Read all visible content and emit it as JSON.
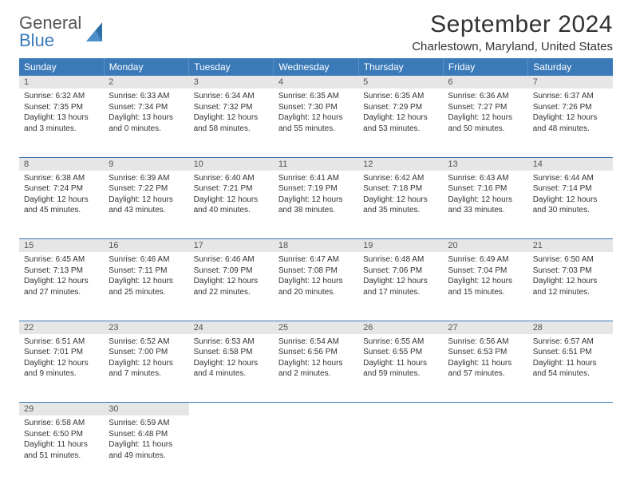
{
  "brand": {
    "name1": "General",
    "name2": "Blue"
  },
  "title": "September 2024",
  "location": "Charlestown, Maryland, United States",
  "colors": {
    "header_bg": "#3a7ab8",
    "header_text": "#ffffff",
    "daynum_bg": "#e6e6e6",
    "grid_border": "#3a7ab8",
    "text": "#333333"
  },
  "weekdays": [
    "Sunday",
    "Monday",
    "Tuesday",
    "Wednesday",
    "Thursday",
    "Friday",
    "Saturday"
  ],
  "weeks": [
    [
      {
        "n": "1",
        "sunrise": "Sunrise: 6:32 AM",
        "sunset": "Sunset: 7:35 PM",
        "daylight": "Daylight: 13 hours and 3 minutes."
      },
      {
        "n": "2",
        "sunrise": "Sunrise: 6:33 AM",
        "sunset": "Sunset: 7:34 PM",
        "daylight": "Daylight: 13 hours and 0 minutes."
      },
      {
        "n": "3",
        "sunrise": "Sunrise: 6:34 AM",
        "sunset": "Sunset: 7:32 PM",
        "daylight": "Daylight: 12 hours and 58 minutes."
      },
      {
        "n": "4",
        "sunrise": "Sunrise: 6:35 AM",
        "sunset": "Sunset: 7:30 PM",
        "daylight": "Daylight: 12 hours and 55 minutes."
      },
      {
        "n": "5",
        "sunrise": "Sunrise: 6:35 AM",
        "sunset": "Sunset: 7:29 PM",
        "daylight": "Daylight: 12 hours and 53 minutes."
      },
      {
        "n": "6",
        "sunrise": "Sunrise: 6:36 AM",
        "sunset": "Sunset: 7:27 PM",
        "daylight": "Daylight: 12 hours and 50 minutes."
      },
      {
        "n": "7",
        "sunrise": "Sunrise: 6:37 AM",
        "sunset": "Sunset: 7:26 PM",
        "daylight": "Daylight: 12 hours and 48 minutes."
      }
    ],
    [
      {
        "n": "8",
        "sunrise": "Sunrise: 6:38 AM",
        "sunset": "Sunset: 7:24 PM",
        "daylight": "Daylight: 12 hours and 45 minutes."
      },
      {
        "n": "9",
        "sunrise": "Sunrise: 6:39 AM",
        "sunset": "Sunset: 7:22 PM",
        "daylight": "Daylight: 12 hours and 43 minutes."
      },
      {
        "n": "10",
        "sunrise": "Sunrise: 6:40 AM",
        "sunset": "Sunset: 7:21 PM",
        "daylight": "Daylight: 12 hours and 40 minutes."
      },
      {
        "n": "11",
        "sunrise": "Sunrise: 6:41 AM",
        "sunset": "Sunset: 7:19 PM",
        "daylight": "Daylight: 12 hours and 38 minutes."
      },
      {
        "n": "12",
        "sunrise": "Sunrise: 6:42 AM",
        "sunset": "Sunset: 7:18 PM",
        "daylight": "Daylight: 12 hours and 35 minutes."
      },
      {
        "n": "13",
        "sunrise": "Sunrise: 6:43 AM",
        "sunset": "Sunset: 7:16 PM",
        "daylight": "Daylight: 12 hours and 33 minutes."
      },
      {
        "n": "14",
        "sunrise": "Sunrise: 6:44 AM",
        "sunset": "Sunset: 7:14 PM",
        "daylight": "Daylight: 12 hours and 30 minutes."
      }
    ],
    [
      {
        "n": "15",
        "sunrise": "Sunrise: 6:45 AM",
        "sunset": "Sunset: 7:13 PM",
        "daylight": "Daylight: 12 hours and 27 minutes."
      },
      {
        "n": "16",
        "sunrise": "Sunrise: 6:46 AM",
        "sunset": "Sunset: 7:11 PM",
        "daylight": "Daylight: 12 hours and 25 minutes."
      },
      {
        "n": "17",
        "sunrise": "Sunrise: 6:46 AM",
        "sunset": "Sunset: 7:09 PM",
        "daylight": "Daylight: 12 hours and 22 minutes."
      },
      {
        "n": "18",
        "sunrise": "Sunrise: 6:47 AM",
        "sunset": "Sunset: 7:08 PM",
        "daylight": "Daylight: 12 hours and 20 minutes."
      },
      {
        "n": "19",
        "sunrise": "Sunrise: 6:48 AM",
        "sunset": "Sunset: 7:06 PM",
        "daylight": "Daylight: 12 hours and 17 minutes."
      },
      {
        "n": "20",
        "sunrise": "Sunrise: 6:49 AM",
        "sunset": "Sunset: 7:04 PM",
        "daylight": "Daylight: 12 hours and 15 minutes."
      },
      {
        "n": "21",
        "sunrise": "Sunrise: 6:50 AM",
        "sunset": "Sunset: 7:03 PM",
        "daylight": "Daylight: 12 hours and 12 minutes."
      }
    ],
    [
      {
        "n": "22",
        "sunrise": "Sunrise: 6:51 AM",
        "sunset": "Sunset: 7:01 PM",
        "daylight": "Daylight: 12 hours and 9 minutes."
      },
      {
        "n": "23",
        "sunrise": "Sunrise: 6:52 AM",
        "sunset": "Sunset: 7:00 PM",
        "daylight": "Daylight: 12 hours and 7 minutes."
      },
      {
        "n": "24",
        "sunrise": "Sunrise: 6:53 AM",
        "sunset": "Sunset: 6:58 PM",
        "daylight": "Daylight: 12 hours and 4 minutes."
      },
      {
        "n": "25",
        "sunrise": "Sunrise: 6:54 AM",
        "sunset": "Sunset: 6:56 PM",
        "daylight": "Daylight: 12 hours and 2 minutes."
      },
      {
        "n": "26",
        "sunrise": "Sunrise: 6:55 AM",
        "sunset": "Sunset: 6:55 PM",
        "daylight": "Daylight: 11 hours and 59 minutes."
      },
      {
        "n": "27",
        "sunrise": "Sunrise: 6:56 AM",
        "sunset": "Sunset: 6:53 PM",
        "daylight": "Daylight: 11 hours and 57 minutes."
      },
      {
        "n": "28",
        "sunrise": "Sunrise: 6:57 AM",
        "sunset": "Sunset: 6:51 PM",
        "daylight": "Daylight: 11 hours and 54 minutes."
      }
    ],
    [
      {
        "n": "29",
        "sunrise": "Sunrise: 6:58 AM",
        "sunset": "Sunset: 6:50 PM",
        "daylight": "Daylight: 11 hours and 51 minutes."
      },
      {
        "n": "30",
        "sunrise": "Sunrise: 6:59 AM",
        "sunset": "Sunset: 6:48 PM",
        "daylight": "Daylight: 11 hours and 49 minutes."
      },
      null,
      null,
      null,
      null,
      null
    ]
  ]
}
